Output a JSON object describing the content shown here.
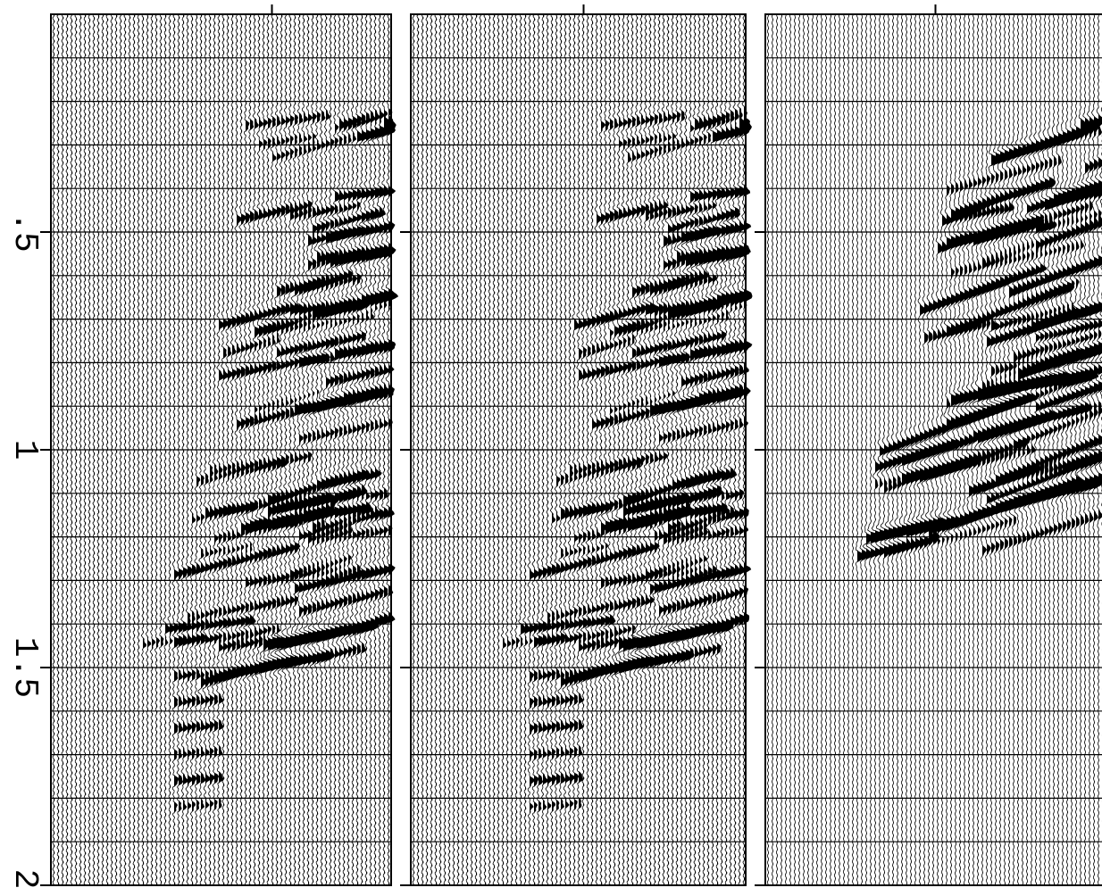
{
  "chart_data": {
    "type": "seismic",
    "ylim": [
      0,
      2
    ],
    "yticks": [
      {
        "value": 0.5,
        "label": ".5"
      },
      1,
      1.5,
      2
    ]
  }
}
